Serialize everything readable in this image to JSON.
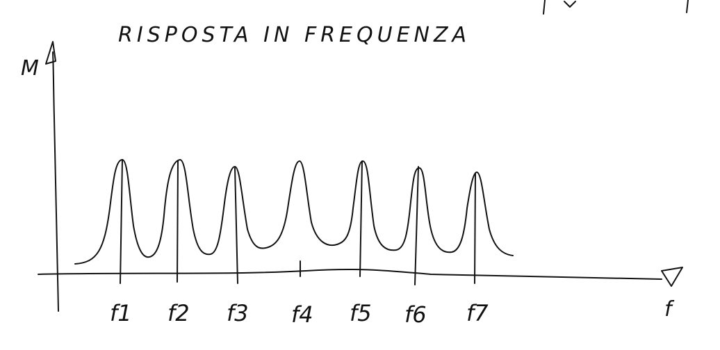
{
  "title": "RISPOSTA IN FREQUENZA",
  "y_axis_label": "M",
  "x_axis_label": "f",
  "frequency_labels": [
    "f1",
    "f2",
    "f3",
    "f4",
    "f5",
    "f6",
    "f7"
  ],
  "ink_color": "#111111",
  "background_color": "#ffffff"
}
